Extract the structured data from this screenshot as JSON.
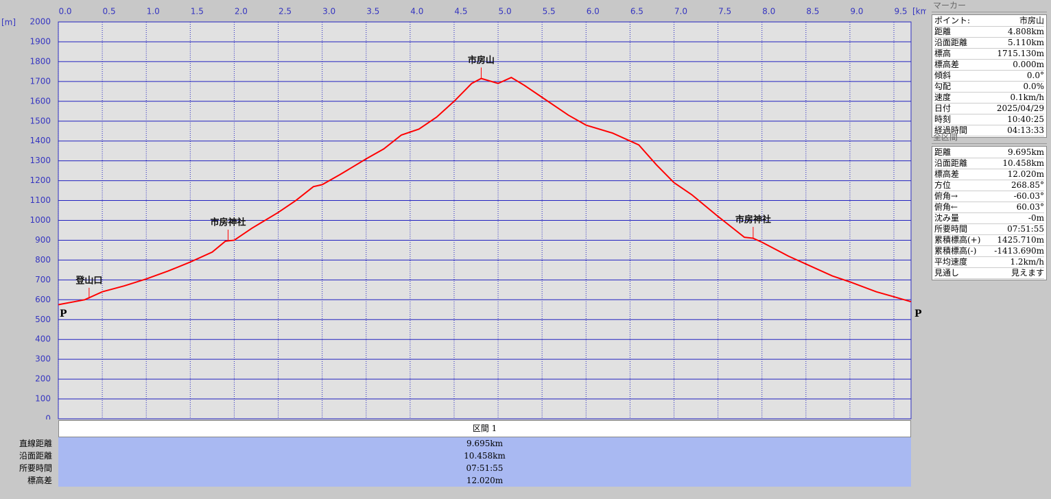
{
  "chart_data": {
    "type": "line",
    "x_unit": "[km]",
    "y_unit": "[m]",
    "x": [
      0,
      0.3,
      0.5,
      0.75,
      1.0,
      1.25,
      1.5,
      1.75,
      1.9,
      2.0,
      2.2,
      2.5,
      2.7,
      2.9,
      3.0,
      3.2,
      3.5,
      3.7,
      3.9,
      4.1,
      4.3,
      4.5,
      4.7,
      4.808,
      5.0,
      5.15,
      5.3,
      5.5,
      5.8,
      6.0,
      6.3,
      6.6,
      6.8,
      7.0,
      7.2,
      7.5,
      7.7,
      7.8,
      7.9,
      8.0,
      8.3,
      8.5,
      8.8,
      9.0,
      9.3,
      9.5,
      9.695
    ],
    "series": [
      {
        "color": "#ff0000",
        "values": [
          575,
          600,
          640,
          670,
          705,
          745,
          790,
          840,
          895,
          900,
          960,
          1040,
          1100,
          1170,
          1180,
          1230,
          1310,
          1360,
          1430,
          1460,
          1520,
          1600,
          1690,
          1715,
          1690,
          1720,
          1680,
          1620,
          1530,
          1480,
          1440,
          1380,
          1280,
          1190,
          1130,
          1020,
          950,
          915,
          910,
          890,
          820,
          780,
          720,
          690,
          640,
          615,
          590
        ]
      }
    ],
    "xlim": [
      0,
      9.695
    ],
    "ylim": [
      0,
      2000
    ],
    "xticks": [
      {
        "value": 0,
        "label": "0.0"
      },
      0.5,
      {
        "value": 1,
        "label": "1.0"
      },
      1.5,
      {
        "value": 2,
        "label": "2.0"
      },
      2.5,
      {
        "value": 3,
        "label": "3.0"
      },
      3.5,
      {
        "value": 4,
        "label": "4.0"
      },
      4.5,
      {
        "value": 5,
        "label": "5.0"
      },
      5.5,
      {
        "value": 6,
        "label": "6.0"
      },
      6.5,
      {
        "value": 7,
        "label": "7.0"
      },
      7.5,
      {
        "value": 8,
        "label": "8.0"
      },
      8.5,
      {
        "value": 9,
        "label": "9.0"
      },
      9.5
    ],
    "yticks": [
      0,
      100,
      200,
      300,
      400,
      500,
      600,
      700,
      800,
      900,
      1000,
      1100,
      1200,
      1300,
      1400,
      1500,
      1600,
      1700,
      1800,
      1900,
      2000
    ],
    "grid": true,
    "annotations": [
      {
        "text": "登山口",
        "x": 0.35,
        "y": 605
      },
      {
        "text": "市房神社",
        "x": 1.93,
        "y": 898
      },
      {
        "text": "市房山",
        "x": 4.808,
        "y": 1715
      },
      {
        "text": "市房神社",
        "x": 7.9,
        "y": 912
      }
    ],
    "start_label": "P",
    "end_label": "P"
  },
  "section_table": {
    "header": "区間 1",
    "rows": [
      [
        "直線距離",
        "9.695km"
      ],
      [
        "沿面距離",
        "10.458km"
      ],
      [
        "所要時間",
        "07:51:55"
      ],
      [
        "標高差",
        "12.020m"
      ]
    ]
  },
  "marker_panel": {
    "title": "マーカー",
    "rows": [
      [
        "ポイント:",
        "市房山"
      ],
      [
        "距離",
        "4.808km"
      ],
      [
        "沿面距離",
        "5.110km"
      ],
      [
        "標高",
        "1715.130m"
      ],
      [
        "標高差",
        "0.000m"
      ],
      [
        "傾斜",
        "0.0°"
      ],
      [
        "勾配",
        "0.0%"
      ],
      [
        "速度",
        "0.1km/h"
      ],
      [
        "日付",
        "2025/04/29"
      ],
      [
        "時刻",
        "10:40:25"
      ],
      [
        "経過時間",
        "04:13:33"
      ]
    ]
  },
  "summary_panel": {
    "title": "全区間",
    "rows": [
      [
        "距離",
        "9.695km"
      ],
      [
        "沿面距離",
        "10.458km"
      ],
      [
        "標高差",
        "12.020m"
      ],
      [
        "方位",
        "268.85°"
      ],
      [
        "俯角→",
        "-60.03°"
      ],
      [
        "俯角←",
        "60.03°"
      ],
      [
        "沈み量",
        "-0m"
      ],
      [
        "所要時間",
        "07:51:55"
      ],
      [
        "累積標高(+)",
        "1425.710m"
      ],
      [
        "累積標高(-)",
        "-1413.690m"
      ],
      [
        "平均速度",
        "1.2km/h"
      ],
      [
        "見通し",
        "見えます"
      ]
    ]
  }
}
